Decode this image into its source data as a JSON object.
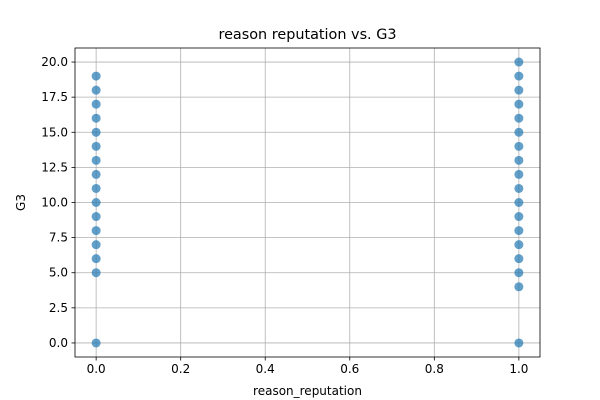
{
  "chart_data": {
    "type": "scatter",
    "title": "reason reputation vs. G3",
    "xlabel": "reason_reputation",
    "ylabel": "G3",
    "xlim": [
      -0.05,
      1.05
    ],
    "ylim": [
      -1.0,
      21.0
    ],
    "x_ticks": [
      0.0,
      0.2,
      0.4,
      0.6,
      0.8,
      1.0
    ],
    "x_tick_labels": [
      "0.0",
      "0.2",
      "0.4",
      "0.6",
      "0.8",
      "1.0"
    ],
    "y_ticks": [
      0.0,
      2.5,
      5.0,
      7.5,
      10.0,
      12.5,
      15.0,
      17.5,
      20.0
    ],
    "y_tick_labels": [
      "0.0",
      "2.5",
      "5.0",
      "7.5",
      "10.0",
      "12.5",
      "15.0",
      "17.5",
      "20.0"
    ],
    "grid": true,
    "marker_color": "#1f77b4",
    "marker_alpha": 0.7,
    "points": [
      {
        "x": 0,
        "y": 0
      },
      {
        "x": 0,
        "y": 5
      },
      {
        "x": 0,
        "y": 6
      },
      {
        "x": 0,
        "y": 7
      },
      {
        "x": 0,
        "y": 8
      },
      {
        "x": 0,
        "y": 9
      },
      {
        "x": 0,
        "y": 10
      },
      {
        "x": 0,
        "y": 11
      },
      {
        "x": 0,
        "y": 12
      },
      {
        "x": 0,
        "y": 13
      },
      {
        "x": 0,
        "y": 14
      },
      {
        "x": 0,
        "y": 15
      },
      {
        "x": 0,
        "y": 16
      },
      {
        "x": 0,
        "y": 17
      },
      {
        "x": 0,
        "y": 18
      },
      {
        "x": 0,
        "y": 19
      },
      {
        "x": 1,
        "y": 0
      },
      {
        "x": 1,
        "y": 4
      },
      {
        "x": 1,
        "y": 5
      },
      {
        "x": 1,
        "y": 6
      },
      {
        "x": 1,
        "y": 7
      },
      {
        "x": 1,
        "y": 8
      },
      {
        "x": 1,
        "y": 9
      },
      {
        "x": 1,
        "y": 10
      },
      {
        "x": 1,
        "y": 11
      },
      {
        "x": 1,
        "y": 12
      },
      {
        "x": 1,
        "y": 13
      },
      {
        "x": 1,
        "y": 14
      },
      {
        "x": 1,
        "y": 15
      },
      {
        "x": 1,
        "y": 16
      },
      {
        "x": 1,
        "y": 17
      },
      {
        "x": 1,
        "y": 18
      },
      {
        "x": 1,
        "y": 19
      },
      {
        "x": 1,
        "y": 20
      }
    ]
  }
}
